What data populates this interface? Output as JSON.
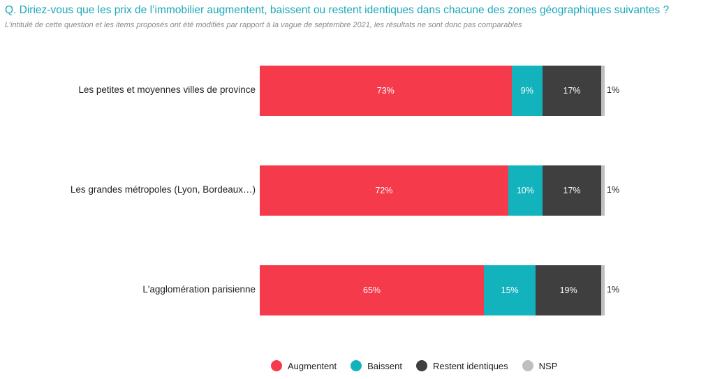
{
  "header": {
    "question": "Q. Diriez-vous que les prix de l’immobilier augmentent, baissent ou restent identiques dans chacune des zones géographiques suivantes ?",
    "note": "L’intitulé de cette question et les items proposés ont été modifiés par rapport à la vague de septembre 2021, les résultats ne sont donc pas comparables"
  },
  "chart_data": {
    "type": "bar",
    "orientation": "horizontal",
    "stacked": true,
    "categories": [
      "Les petites et moyennes villes de province",
      "Les grandes métropoles (Lyon, Bordeaux…)",
      "L'agglomération parisienne"
    ],
    "series": [
      {
        "name": "Augmentent",
        "color": "#f53a4c",
        "values": [
          73,
          72,
          65
        ],
        "labels": [
          "73%",
          "72%",
          "65%"
        ]
      },
      {
        "name": "Baissent",
        "color": "#13b3bd",
        "values": [
          9,
          10,
          15
        ],
        "labels": [
          "9%",
          "10%",
          "15%"
        ]
      },
      {
        "name": "Restent identiques",
        "color": "#3f3f3f",
        "values": [
          17,
          17,
          19
        ],
        "labels": [
          "17%",
          "17%",
          "19%"
        ]
      },
      {
        "name": "NSP",
        "color": "#bfbfbf",
        "values": [
          1,
          1,
          1
        ],
        "labels": [
          "1%",
          "1%",
          "1%"
        ]
      }
    ],
    "xlim": [
      0,
      100
    ],
    "legend_position": "bottom",
    "grid": false
  }
}
